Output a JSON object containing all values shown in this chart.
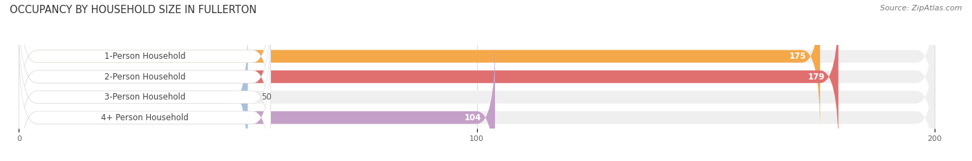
{
  "title": "OCCUPANCY BY HOUSEHOLD SIZE IN FULLERTON",
  "source": "Source: ZipAtlas.com",
  "categories": [
    "1-Person Household",
    "2-Person Household",
    "3-Person Household",
    "4+ Person Household"
  ],
  "values": [
    175,
    179,
    50,
    104
  ],
  "bar_colors": [
    "#F5A84A",
    "#E07070",
    "#AABFDD",
    "#C4A0C8"
  ],
  "bar_bg_color": "#EFEFEF",
  "label_bg_color": "#FFFFFF",
  "xmax": 200,
  "xticks": [
    0,
    100,
    200
  ],
  "title_fontsize": 10.5,
  "source_fontsize": 8,
  "label_fontsize": 8.5,
  "value_fontsize": 8.5,
  "background_color": "#FFFFFF",
  "bar_height": 0.62,
  "bar_gap": 0.38
}
